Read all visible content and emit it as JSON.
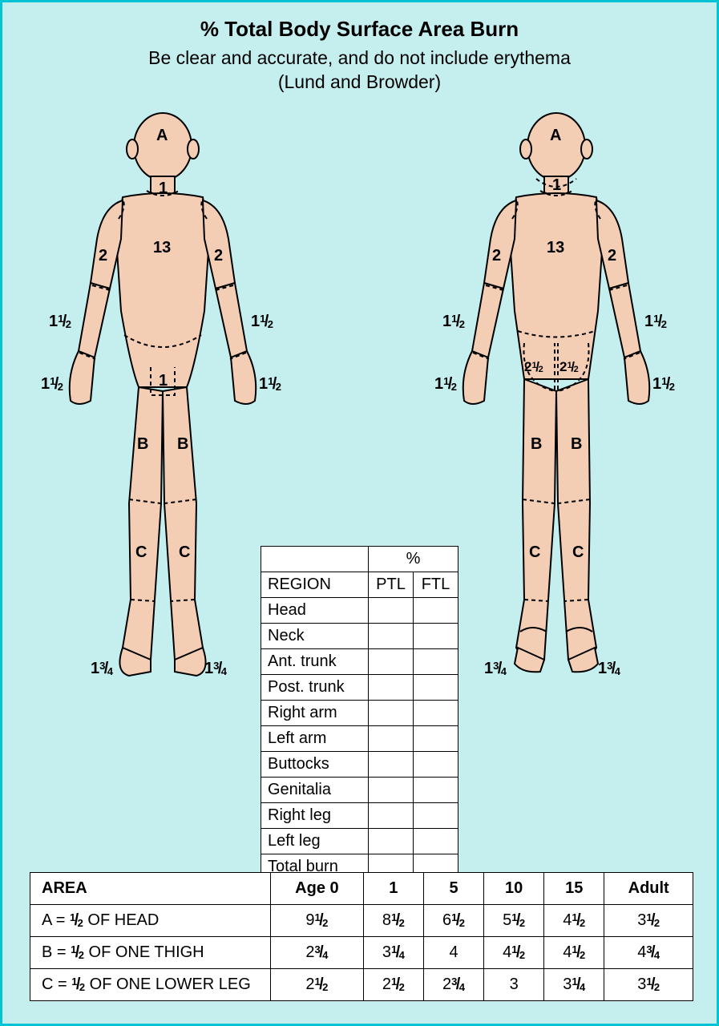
{
  "title": "% Total Body Surface Area Burn",
  "subtitle_line1": "Be clear and accurate, and do not include erythema",
  "subtitle_line2": "(Lund and Browder)",
  "colors": {
    "page_bg": "#c5efef",
    "page_border": "#00c4d4",
    "skin": "#f4cdb5",
    "outline": "#000000",
    "table_bg": "#ffffff"
  },
  "body_labels": {
    "head": "A",
    "neck": "1",
    "trunk": "13",
    "upper_arm": "2",
    "forearm": "1½",
    "hand": "1½",
    "genitals": "1",
    "buttock": "2½",
    "thigh": "B",
    "lower_leg": "C",
    "foot": "1¾"
  },
  "region_table": {
    "pct_header": "%",
    "columns": [
      "REGION",
      "PTL",
      "FTL"
    ],
    "rows": [
      "Head",
      "Neck",
      "Ant. trunk",
      "Post. trunk",
      "Right arm",
      "Left arm",
      "Buttocks",
      "Genitalia",
      "Right leg",
      "Left leg",
      "Total burn"
    ]
  },
  "age_table": {
    "header": [
      "AREA",
      "Age 0",
      "1",
      "5",
      "10",
      "15",
      "Adult"
    ],
    "rows": [
      {
        "area": "A = ½ OF HEAD",
        "vals": [
          "9½",
          "8½",
          "6½",
          "5½",
          "4½",
          "3½"
        ]
      },
      {
        "area": "B = ½ OF ONE THIGH",
        "vals": [
          "2¾",
          "3¼",
          "4",
          "4½",
          "4½",
          "4¾"
        ]
      },
      {
        "area": "C = ½ OF ONE LOWER LEG",
        "vals": [
          "2½",
          "2½",
          "2¾",
          "3",
          "3¼",
          "3½"
        ]
      }
    ]
  }
}
